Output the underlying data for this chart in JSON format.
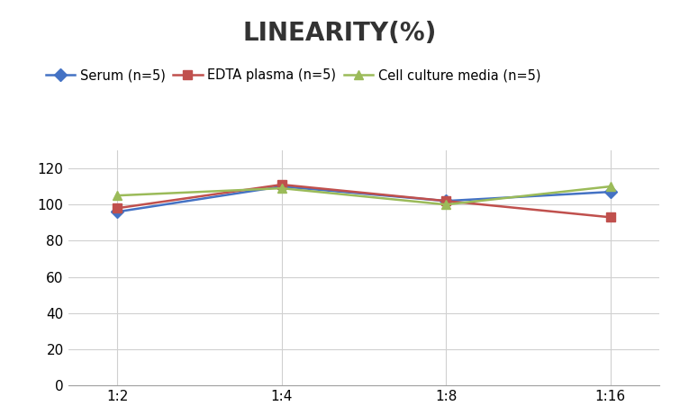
{
  "title": "LINEARITY(%)",
  "x_labels": [
    "1:2",
    "1:4",
    "1:8",
    "1:16"
  ],
  "series": [
    {
      "label": "Serum (n=5)",
      "values": [
        96,
        110,
        102,
        107
      ],
      "color": "#4472C4",
      "marker": "D"
    },
    {
      "label": "EDTA plasma (n=5)",
      "values": [
        98,
        111,
        102,
        93
      ],
      "color": "#C0504D",
      "marker": "s"
    },
    {
      "label": "Cell culture media (n=5)",
      "values": [
        105,
        109,
        100,
        110
      ],
      "color": "#9BBB59",
      "marker": "^"
    }
  ],
  "ylim": [
    0,
    130
  ],
  "yticks": [
    0,
    20,
    40,
    60,
    80,
    100,
    120
  ],
  "background_color": "#ffffff",
  "title_fontsize": 20,
  "legend_fontsize": 10.5,
  "tick_fontsize": 11,
  "grid_color": "#d0d0d0",
  "line_width": 1.8,
  "marker_size": 7
}
